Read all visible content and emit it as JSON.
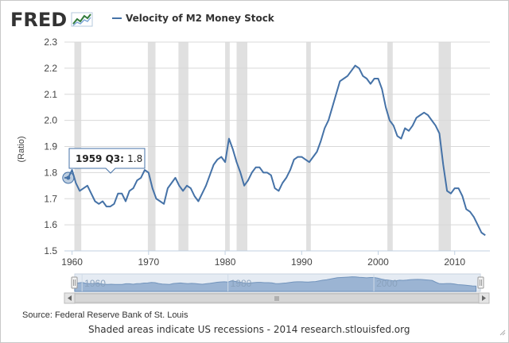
{
  "logo": {
    "text": "FRED"
  },
  "chart_data": {
    "type": "line",
    "title": "",
    "xlabel": "",
    "ylabel": "(Ratio)",
    "ylim": [
      1.5,
      2.3
    ],
    "xlim": [
      1959.0,
      2014.6
    ],
    "yticks": [
      "1.5",
      "1.6",
      "1.7",
      "1.8",
      "1.9",
      "2.0",
      "2.1",
      "2.2",
      "2.3"
    ],
    "xticks": [
      "1960",
      "1970",
      "1980",
      "1990",
      "2000",
      "2010"
    ],
    "legend_position": "top-left",
    "grid": "horizontal",
    "series": [
      {
        "name": "Velocity of M2 Money Stock",
        "color": "#4572a7",
        "x": [
          1959.0,
          1959.5,
          1960.0,
          1960.5,
          1961.0,
          1961.5,
          1962.0,
          1962.5,
          1963.0,
          1963.5,
          1964.0,
          1964.5,
          1965.0,
          1965.5,
          1966.0,
          1966.5,
          1967.0,
          1967.5,
          1968.0,
          1968.5,
          1969.0,
          1969.5,
          1970.0,
          1970.5,
          1971.0,
          1971.5,
          1972.0,
          1972.5,
          1973.0,
          1973.5,
          1974.0,
          1974.5,
          1975.0,
          1975.5,
          1976.0,
          1976.5,
          1977.0,
          1977.5,
          1978.0,
          1978.5,
          1979.0,
          1979.5,
          1980.0,
          1980.5,
          1981.0,
          1981.5,
          1982.0,
          1982.5,
          1983.0,
          1983.5,
          1984.0,
          1984.5,
          1985.0,
          1985.5,
          1986.0,
          1986.5,
          1987.0,
          1987.5,
          1988.0,
          1988.5,
          1989.0,
          1989.5,
          1990.0,
          1990.5,
          1991.0,
          1991.5,
          1992.0,
          1992.5,
          1993.0,
          1993.5,
          1994.0,
          1994.5,
          1995.0,
          1995.5,
          1996.0,
          1996.5,
          1997.0,
          1997.5,
          1998.0,
          1998.5,
          1999.0,
          1999.5,
          2000.0,
          2000.5,
          2001.0,
          2001.5,
          2002.0,
          2002.5,
          2003.0,
          2003.5,
          2004.0,
          2004.5,
          2005.0,
          2005.5,
          2006.0,
          2006.5,
          2007.0,
          2007.5,
          2008.0,
          2008.5,
          2009.0,
          2009.5,
          2010.0,
          2010.5,
          2011.0,
          2011.5,
          2012.0,
          2012.5,
          2013.0,
          2013.5,
          2014.0
        ],
        "values": [
          1.78,
          1.78,
          1.81,
          1.76,
          1.73,
          1.74,
          1.75,
          1.72,
          1.69,
          1.68,
          1.69,
          1.67,
          1.67,
          1.68,
          1.72,
          1.72,
          1.69,
          1.73,
          1.74,
          1.77,
          1.78,
          1.81,
          1.8,
          1.74,
          1.7,
          1.69,
          1.68,
          1.74,
          1.76,
          1.78,
          1.75,
          1.73,
          1.75,
          1.74,
          1.71,
          1.69,
          1.72,
          1.75,
          1.79,
          1.83,
          1.85,
          1.86,
          1.84,
          1.93,
          1.89,
          1.84,
          1.8,
          1.75,
          1.77,
          1.8,
          1.82,
          1.82,
          1.8,
          1.8,
          1.79,
          1.74,
          1.73,
          1.76,
          1.78,
          1.81,
          1.85,
          1.86,
          1.86,
          1.85,
          1.84,
          1.86,
          1.88,
          1.92,
          1.97,
          2.0,
          2.05,
          2.1,
          2.15,
          2.16,
          2.17,
          2.19,
          2.21,
          2.2,
          2.17,
          2.16,
          2.14,
          2.16,
          2.16,
          2.12,
          2.05,
          2.0,
          1.98,
          1.94,
          1.93,
          1.97,
          1.96,
          1.98,
          2.01,
          2.02,
          2.03,
          2.02,
          2.0,
          1.98,
          1.95,
          1.83,
          1.73,
          1.72,
          1.74,
          1.74,
          1.71,
          1.66,
          1.65,
          1.63,
          1.6,
          1.57,
          1.56
        ]
      }
    ],
    "recessions": [
      [
        1960.3,
        1961.2
      ],
      [
        1969.9,
        1970.9
      ],
      [
        1973.9,
        1975.2
      ],
      [
        1980.0,
        1980.6
      ],
      [
        1981.5,
        1982.9
      ],
      [
        1990.6,
        1991.2
      ],
      [
        2001.2,
        2001.9
      ],
      [
        2007.9,
        2009.5
      ]
    ],
    "navigator": {
      "xticks": [
        "1960",
        "1980",
        "2000"
      ]
    },
    "tooltip": {
      "label": "1959 Q3",
      "value": "1.8",
      "x": 1959.5,
      "y": 1.78
    }
  },
  "source": "Source: Federal Reserve Bank of St. Louis",
  "footer": "Shaded areas indicate US recessions - 2014 research.stlouisfed.org",
  "colors": {
    "line": "#4572a7",
    "recession": "#e0e0e0",
    "grid": "#d8d8d8"
  }
}
